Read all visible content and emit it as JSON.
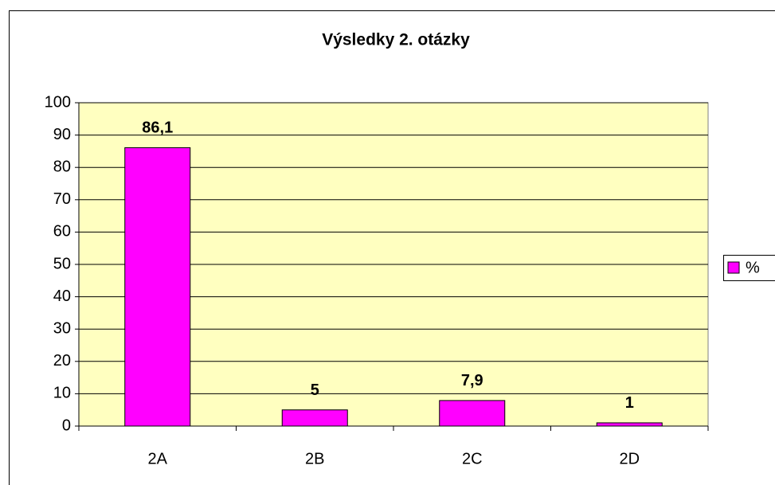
{
  "chart_data": {
    "type": "bar",
    "title": "Výsledky 2. otázky",
    "categories": [
      "2A",
      "2B",
      "2C",
      "2D"
    ],
    "series": [
      {
        "name": "%",
        "color": "#ff00ff",
        "values": [
          86.1,
          5,
          7.9,
          1
        ],
        "value_labels": [
          "86,1",
          "5",
          "7,9",
          "1"
        ]
      }
    ],
    "ylim": [
      0,
      100
    ],
    "yticks": [
      0,
      10,
      20,
      30,
      40,
      50,
      60,
      70,
      80,
      90,
      100
    ],
    "grid": true,
    "legend": "right"
  }
}
